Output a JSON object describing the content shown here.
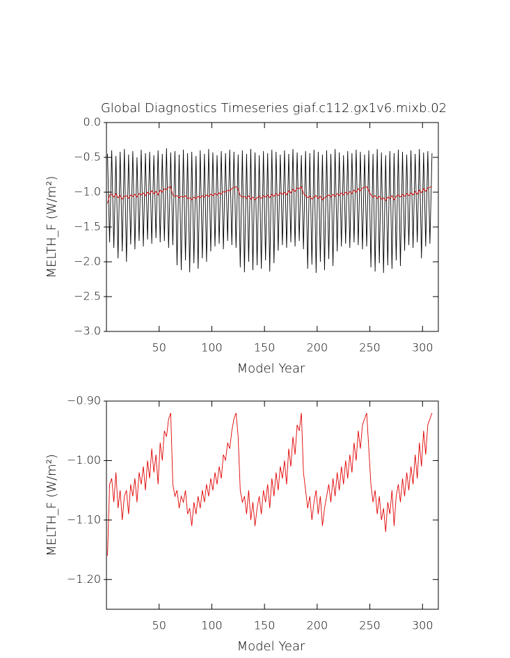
{
  "chart_data": [
    {
      "type": "line",
      "title": "Global Diagnostics Timeseries giaf.c112.gx1v6.mixb.02",
      "x_label": "Model Year",
      "y_label": "MELTH_F (W/m²)",
      "x": [
        1,
        3,
        5,
        7,
        9,
        11,
        13,
        15,
        17,
        19,
        21,
        23,
        25,
        27,
        29,
        31,
        33,
        35,
        37,
        39,
        41,
        43,
        45,
        47,
        49,
        51,
        53,
        55,
        57,
        59,
        61,
        63,
        65,
        67,
        69,
        71,
        73,
        75,
        77,
        79,
        81,
        83,
        85,
        87,
        89,
        91,
        93,
        95,
        97,
        99,
        101,
        103,
        105,
        107,
        109,
        111,
        113,
        115,
        117,
        119,
        121,
        123,
        125,
        127,
        129,
        131,
        133,
        135,
        137,
        139,
        141,
        143,
        145,
        147,
        149,
        151,
        153,
        155,
        157,
        159,
        161,
        163,
        165,
        167,
        169,
        171,
        173,
        175,
        177,
        179,
        181,
        183,
        185,
        187,
        189,
        191,
        193,
        195,
        197,
        199,
        201,
        203,
        205,
        207,
        209,
        211,
        213,
        215,
        217,
        219,
        221,
        223,
        225,
        227,
        229,
        231,
        233,
        235,
        237,
        239,
        241,
        243,
        245,
        247,
        249,
        251,
        253,
        255,
        257,
        259,
        261,
        263,
        265,
        267,
        269,
        271,
        273,
        275,
        277,
        279,
        281,
        283,
        285,
        287,
        289,
        291,
        293,
        295,
        297,
        299,
        301,
        303,
        305,
        307,
        309
      ],
      "series": [
        {
          "color": "#000000",
          "values": [
            -0.45,
            -1.72,
            -0.4,
            -1.8,
            -0.48,
            -1.95,
            -0.42,
            -1.85,
            -0.38,
            -2.0,
            -0.46,
            -1.75,
            -0.41,
            -1.82,
            -0.5,
            -1.7,
            -0.39,
            -1.78,
            -0.44,
            -1.68,
            -0.42,
            -1.74,
            -0.47,
            -1.66,
            -0.4,
            -1.72,
            -0.45,
            -1.7,
            -0.37,
            -1.8,
            -0.43,
            -1.76,
            -0.41,
            -2.05,
            -0.46,
            -2.12,
            -0.39,
            -1.98,
            -0.44,
            -2.15,
            -0.42,
            -2.02,
            -0.48,
            -2.1,
            -0.4,
            -1.95,
            -0.45,
            -2.0,
            -0.38,
            -1.85,
            -0.43,
            -1.78,
            -0.47,
            -1.74,
            -0.41,
            -1.82,
            -0.44,
            -1.7,
            -0.39,
            -1.76,
            -0.42,
            -1.8,
            -0.46,
            -2.08,
            -0.4,
            -2.15,
            -0.45,
            -2.0,
            -0.38,
            -2.12,
            -0.43,
            -2.05,
            -0.47,
            -2.1,
            -0.41,
            -1.98,
            -0.44,
            -2.14,
            -0.39,
            -2.02,
            -0.42,
            -1.84,
            -0.46,
            -1.76,
            -0.4,
            -1.8,
            -0.45,
            -1.72,
            -0.38,
            -1.78,
            -0.43,
            -1.7,
            -0.47,
            -1.82,
            -0.41,
            -2.1,
            -0.44,
            -2.04,
            -0.39,
            -2.16,
            -0.42,
            -2.0,
            -0.46,
            -2.12,
            -0.4,
            -1.96,
            -0.45,
            -2.06,
            -0.38,
            -1.85,
            -0.43,
            -1.78,
            -0.47,
            -1.74,
            -0.41,
            -1.8,
            -0.44,
            -1.72,
            -0.39,
            -1.76,
            -0.42,
            -1.82,
            -0.46,
            -1.78,
            -0.4,
            -2.08,
            -0.45,
            -2.14,
            -0.38,
            -2.02,
            -0.43,
            -2.16,
            -0.47,
            -2.05,
            -0.41,
            -2.1,
            -0.44,
            -1.98,
            -0.39,
            -2.06,
            -0.42,
            -1.84,
            -0.46,
            -1.76,
            -0.4,
            -1.8,
            -0.45,
            -1.72,
            -0.38,
            -1.95,
            -0.43,
            -1.78,
            -0.41,
            -1.74,
            -0.44
          ]
        },
        {
          "color": "#e00000",
          "values": [
            -1.16,
            -1.04,
            -1.03,
            -1.07,
            -1.02,
            -1.08,
            -1.05,
            -1.1,
            -1.06,
            -1.05,
            -1.09,
            -1.04,
            -1.06,
            -1.03,
            -1.07,
            -1.02,
            -1.04,
            -1.01,
            -1.05,
            -1.0,
            -1.03,
            -0.98,
            -1.02,
            -0.99,
            -1.04,
            -0.97,
            -1.0,
            -0.95,
            -0.96,
            -0.93,
            -0.92,
            -1.04,
            -1.06,
            -1.05,
            -1.08,
            -1.06,
            -1.07,
            -1.05,
            -1.09,
            -1.08,
            -1.11,
            -1.07,
            -1.09,
            -1.06,
            -1.08,
            -1.05,
            -1.07,
            -1.04,
            -1.06,
            -1.03,
            -1.05,
            -1.02,
            -1.04,
            -1.01,
            -1.03,
            -0.99,
            -1.0,
            -0.97,
            -0.98,
            -0.95,
            -0.93,
            -0.92,
            -0.96,
            -1.05,
            -1.07,
            -1.06,
            -1.09,
            -1.05,
            -1.1,
            -1.07,
            -1.11,
            -1.08,
            -1.06,
            -1.09,
            -1.05,
            -1.07,
            -1.04,
            -1.08,
            -1.03,
            -1.06,
            -1.02,
            -1.05,
            -1.01,
            -1.03,
            -1.0,
            -1.04,
            -0.98,
            -1.01,
            -0.96,
            -0.99,
            -0.94,
            -0.95,
            -0.92,
            -1.02,
            -1.05,
            -1.08,
            -1.06,
            -1.1,
            -1.07,
            -1.05,
            -1.09,
            -1.06,
            -1.11,
            -1.08,
            -1.06,
            -1.04,
            -1.07,
            -1.03,
            -1.06,
            -1.02,
            -1.05,
            -1.01,
            -1.04,
            -1.0,
            -1.03,
            -0.99,
            -1.02,
            -0.97,
            -1.0,
            -0.95,
            -0.98,
            -0.94,
            -0.93,
            -0.92,
            -0.98,
            -1.04,
            -1.07,
            -1.05,
            -1.09,
            -1.06,
            -1.1,
            -1.08,
            -1.12,
            -1.07,
            -1.09,
            -1.05,
            -1.11,
            -1.06,
            -1.04,
            -1.07,
            -1.03,
            -1.06,
            -1.02,
            -1.05,
            -1.01,
            -1.04,
            -0.99,
            -1.03,
            -0.97,
            -1.01,
            -0.95,
            -0.99,
            -0.94,
            -0.93,
            -0.92
          ]
        }
      ],
      "xlim": [
        0,
        315
      ],
      "xticks": [
        50,
        100,
        150,
        200,
        250,
        300
      ],
      "ylim": [
        -3,
        0
      ],
      "yticks": [
        {
          "value": -3,
          "label": "−3.0"
        },
        {
          "value": -2.5,
          "label": "−2.5"
        },
        {
          "value": -2,
          "label": "−2.0"
        },
        {
          "value": -1.5,
          "label": "−1.5"
        },
        {
          "value": -1,
          "label": "−1.0"
        },
        {
          "value": -0.5,
          "label": "−0.5"
        },
        {
          "value": 0,
          "label": "0.0"
        }
      ]
    },
    {
      "type": "line",
      "x_label": "Model Year",
      "y_label": "MELTH_F (W/m²)",
      "x": [
        1,
        3,
        5,
        7,
        9,
        11,
        13,
        15,
        17,
        19,
        21,
        23,
        25,
        27,
        29,
        31,
        33,
        35,
        37,
        39,
        41,
        43,
        45,
        47,
        49,
        51,
        53,
        55,
        57,
        59,
        61,
        63,
        65,
        67,
        69,
        71,
        73,
        75,
        77,
        79,
        81,
        83,
        85,
        87,
        89,
        91,
        93,
        95,
        97,
        99,
        101,
        103,
        105,
        107,
        109,
        111,
        113,
        115,
        117,
        119,
        121,
        123,
        125,
        127,
        129,
        131,
        133,
        135,
        137,
        139,
        141,
        143,
        145,
        147,
        149,
        151,
        153,
        155,
        157,
        159,
        161,
        163,
        165,
        167,
        169,
        171,
        173,
        175,
        177,
        179,
        181,
        183,
        185,
        187,
        189,
        191,
        193,
        195,
        197,
        199,
        201,
        203,
        205,
        207,
        209,
        211,
        213,
        215,
        217,
        219,
        221,
        223,
        225,
        227,
        229,
        231,
        233,
        235,
        237,
        239,
        241,
        243,
        245,
        247,
        249,
        251,
        253,
        255,
        257,
        259,
        261,
        263,
        265,
        267,
        269,
        271,
        273,
        275,
        277,
        279,
        281,
        283,
        285,
        287,
        289,
        291,
        293,
        295,
        297,
        299,
        301,
        303,
        305,
        307,
        309
      ],
      "series": [
        {
          "color": "#e00000",
          "values": [
            -1.16,
            -1.04,
            -1.03,
            -1.07,
            -1.02,
            -1.08,
            -1.05,
            -1.1,
            -1.06,
            -1.05,
            -1.09,
            -1.04,
            -1.06,
            -1.03,
            -1.07,
            -1.02,
            -1.04,
            -1.01,
            -1.05,
            -1.0,
            -1.03,
            -0.98,
            -1.02,
            -0.99,
            -1.04,
            -0.97,
            -1.0,
            -0.95,
            -0.96,
            -0.93,
            -0.92,
            -1.04,
            -1.06,
            -1.05,
            -1.08,
            -1.06,
            -1.07,
            -1.05,
            -1.09,
            -1.08,
            -1.11,
            -1.07,
            -1.09,
            -1.06,
            -1.08,
            -1.05,
            -1.07,
            -1.04,
            -1.06,
            -1.03,
            -1.05,
            -1.02,
            -1.04,
            -1.01,
            -1.03,
            -0.99,
            -1.0,
            -0.97,
            -0.98,
            -0.95,
            -0.93,
            -0.92,
            -0.96,
            -1.05,
            -1.07,
            -1.06,
            -1.09,
            -1.05,
            -1.1,
            -1.07,
            -1.11,
            -1.08,
            -1.06,
            -1.09,
            -1.05,
            -1.07,
            -1.04,
            -1.08,
            -1.03,
            -1.06,
            -1.02,
            -1.05,
            -1.01,
            -1.03,
            -1.0,
            -1.04,
            -0.98,
            -1.01,
            -0.96,
            -0.99,
            -0.94,
            -0.95,
            -0.92,
            -1.02,
            -1.05,
            -1.08,
            -1.06,
            -1.1,
            -1.07,
            -1.05,
            -1.09,
            -1.06,
            -1.11,
            -1.08,
            -1.06,
            -1.04,
            -1.07,
            -1.03,
            -1.06,
            -1.02,
            -1.05,
            -1.01,
            -1.04,
            -1.0,
            -1.03,
            -0.99,
            -1.02,
            -0.97,
            -1.0,
            -0.95,
            -0.98,
            -0.94,
            -0.93,
            -0.92,
            -0.98,
            -1.04,
            -1.07,
            -1.05,
            -1.09,
            -1.06,
            -1.1,
            -1.08,
            -1.12,
            -1.07,
            -1.09,
            -1.05,
            -1.11,
            -1.06,
            -1.04,
            -1.07,
            -1.03,
            -1.06,
            -1.02,
            -1.05,
            -1.01,
            -1.04,
            -0.99,
            -1.03,
            -0.97,
            -1.01,
            -0.95,
            -0.99,
            -0.94,
            -0.93,
            -0.92
          ]
        }
      ],
      "xlim": [
        0,
        315
      ],
      "xticks": [
        50,
        100,
        150,
        200,
        250,
        300
      ],
      "ylim": [
        -1.25,
        -0.9
      ],
      "yticks": [
        {
          "value": -1.2,
          "label": "−1.20"
        },
        {
          "value": -1.1,
          "label": "−1.10"
        },
        {
          "value": -1,
          "label": "−1.00"
        },
        {
          "value": -0.9,
          "label": "−0.90"
        }
      ]
    }
  ]
}
